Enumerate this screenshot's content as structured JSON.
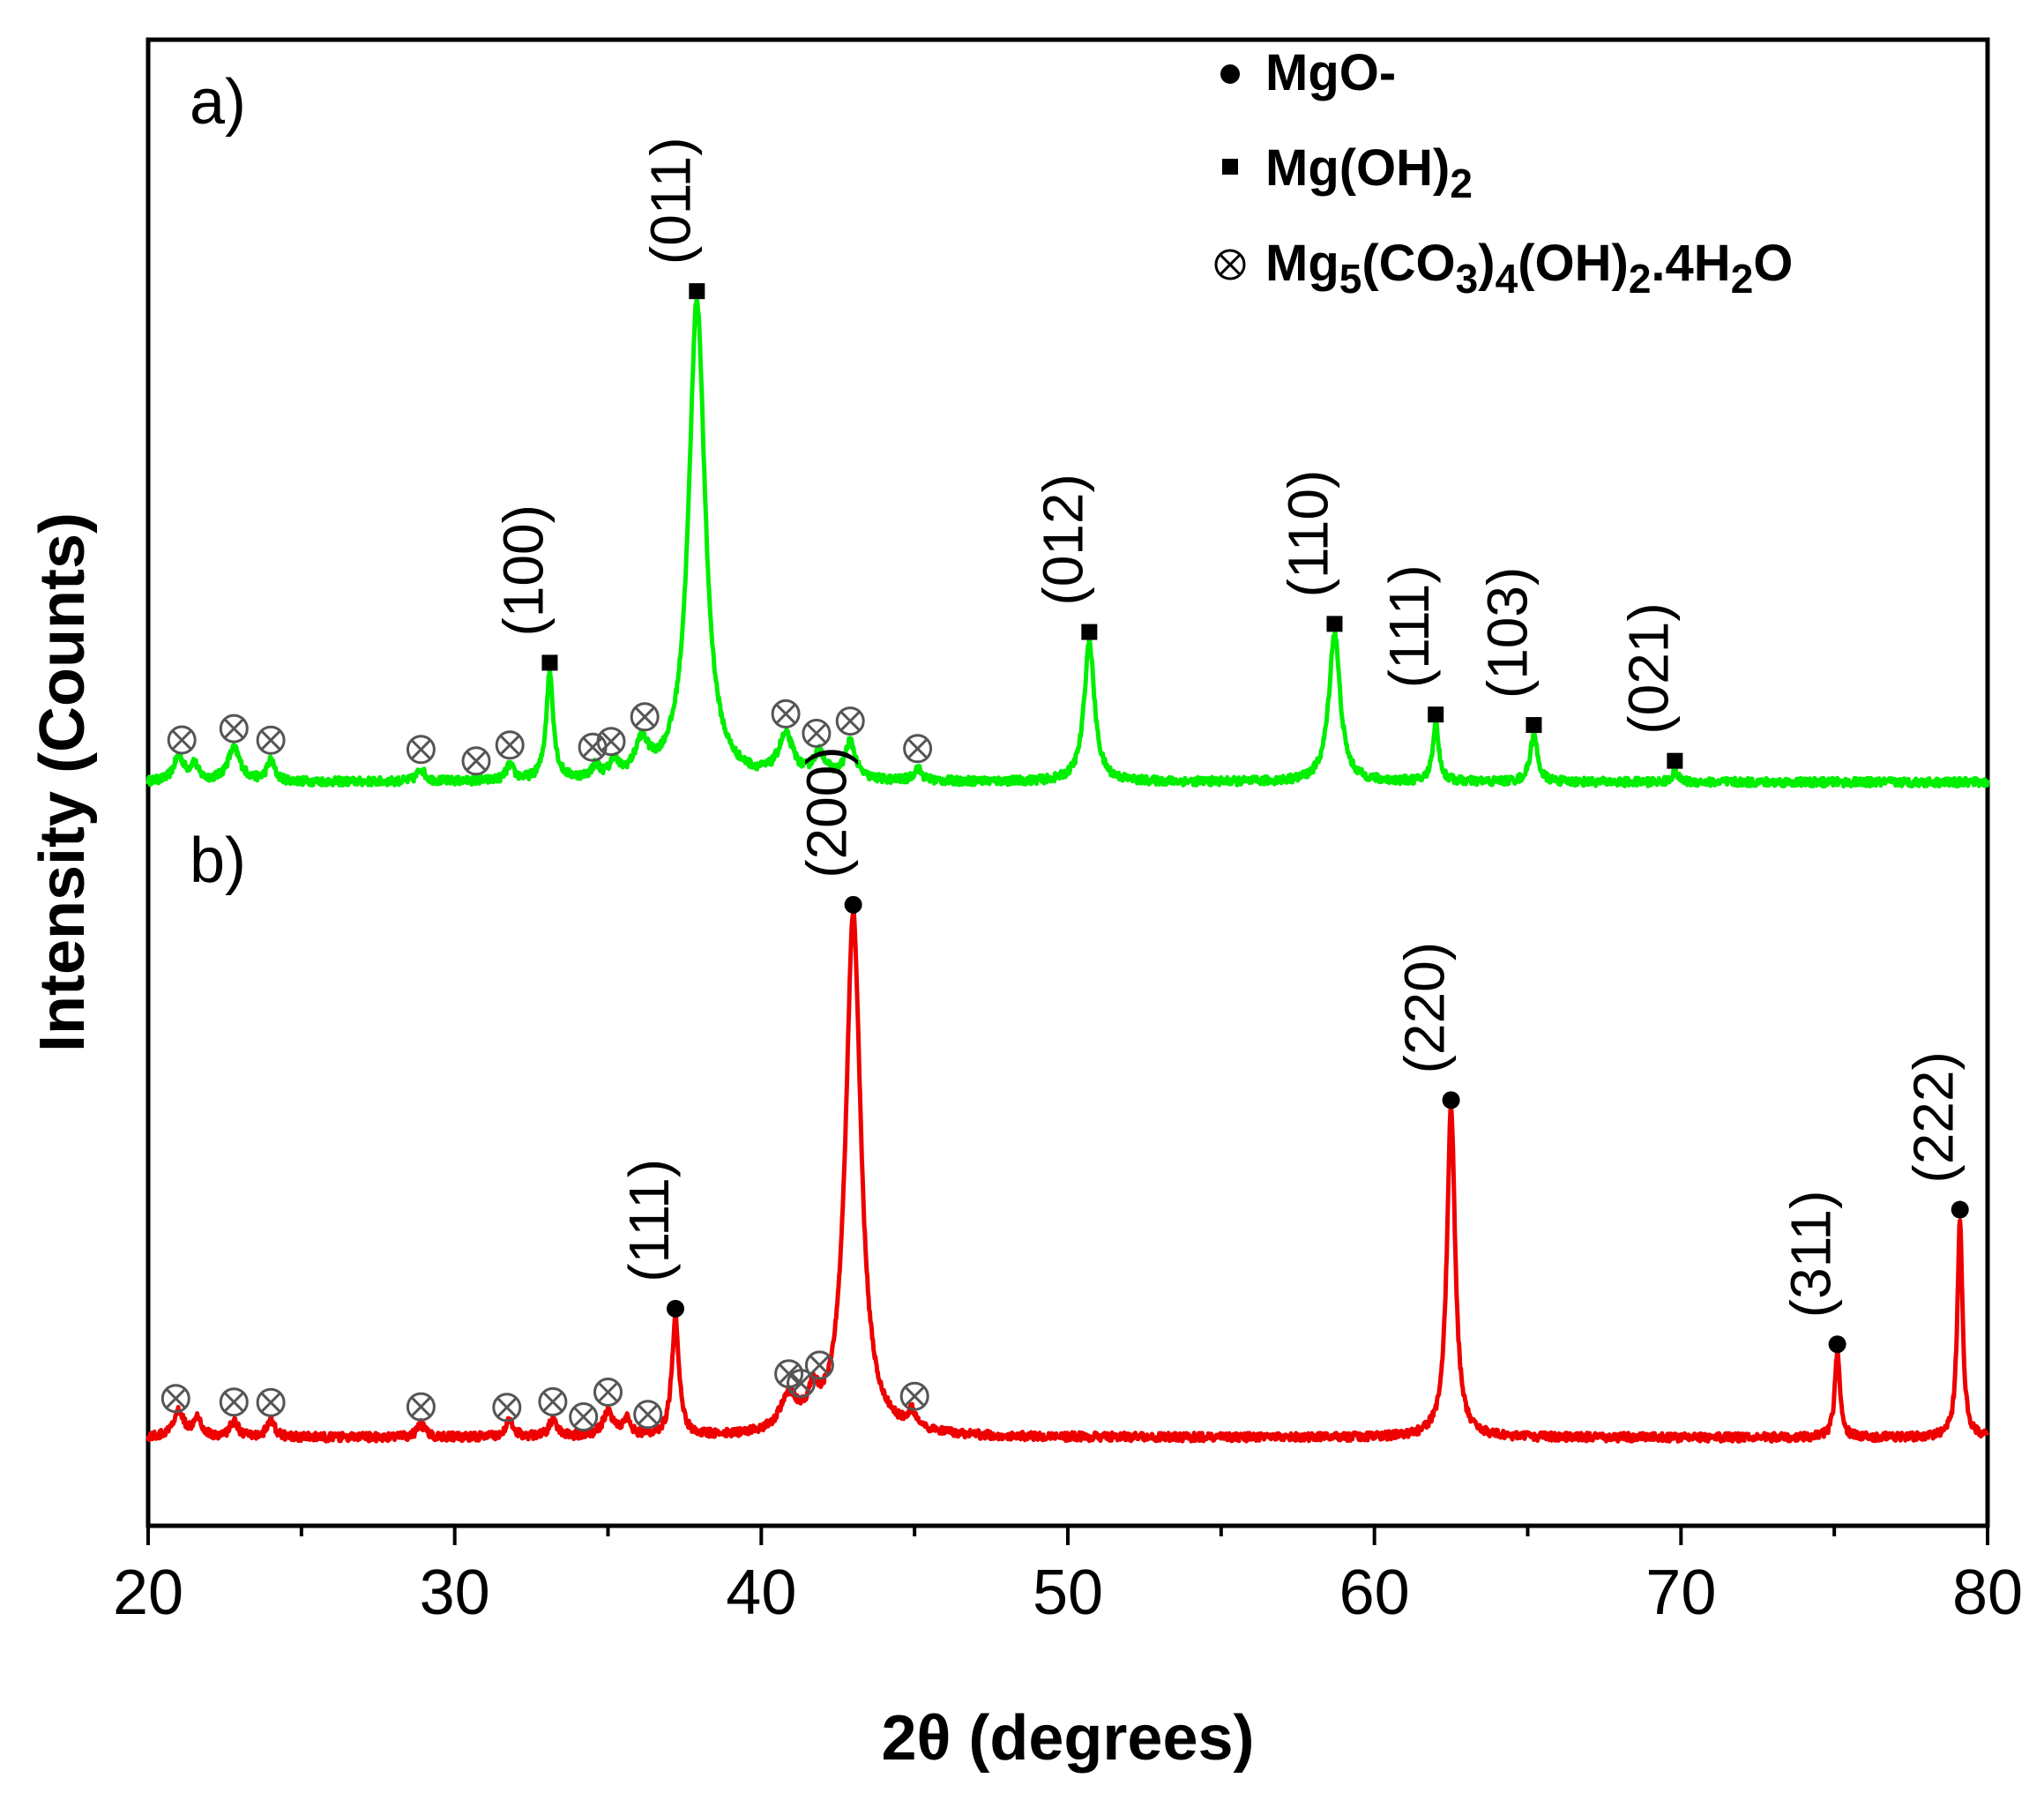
{
  "chart_data": {
    "type": "line",
    "xlabel": "2θ (degrees)",
    "ylabel": "Intensity  (Counts)",
    "xlim": [
      20,
      80
    ],
    "x_ticks": [
      "20",
      "30",
      "40",
      "50",
      "60",
      "70",
      "80"
    ],
    "grid": false,
    "legend_position": "top-right",
    "legend": [
      {
        "symbol": "circle",
        "text": "MgO-"
      },
      {
        "symbol": "square",
        "text": "Mg(OH)2",
        "parts": [
          {
            "t": "Mg(OH)"
          },
          {
            "t": "2",
            "sub": true
          }
        ]
      },
      {
        "symbol": "crossed-circle",
        "text": "Mg5(CO3)4(OH)2.4H2O",
        "parts": [
          {
            "t": "Mg"
          },
          {
            "t": "5",
            "sub": true
          },
          {
            "t": "(CO"
          },
          {
            "t": "3",
            "sub": true
          },
          {
            "t": ")"
          },
          {
            "t": "4",
            "sub": true
          },
          {
            "t": "(OH)"
          },
          {
            "t": "2",
            "sub": true
          },
          {
            "t": ".4H"
          },
          {
            "t": "2",
            "sub": true
          },
          {
            "t": "O"
          }
        ]
      }
    ],
    "series": [
      {
        "panel": "a)",
        "color": "#00ee00",
        "peaks": [
          {
            "x": 33.1,
            "h": 0.13,
            "w": 0.14
          },
          {
            "x": 37.9,
            "h": 0.58,
            "w": 0.32
          },
          {
            "x": 50.7,
            "h": 0.17,
            "w": 0.2
          },
          {
            "x": 58.7,
            "h": 0.18,
            "w": 0.22
          },
          {
            "x": 62.0,
            "h": 0.07,
            "w": 0.12
          },
          {
            "x": 65.2,
            "h": 0.058,
            "w": 0.14
          },
          {
            "x": 69.8,
            "h": 0.015,
            "w": 0.1
          },
          {
            "x": 21.0,
            "h": 0.03,
            "w": 0.2
          },
          {
            "x": 21.5,
            "h": 0.02,
            "w": 0.15
          },
          {
            "x": 22.8,
            "h": 0.04,
            "w": 0.25
          },
          {
            "x": 24.0,
            "h": 0.025,
            "w": 0.15
          },
          {
            "x": 28.9,
            "h": 0.015,
            "w": 0.15
          },
          {
            "x": 31.8,
            "h": 0.018,
            "w": 0.15
          },
          {
            "x": 34.6,
            "h": 0.015,
            "w": 0.15
          },
          {
            "x": 35.2,
            "h": 0.02,
            "w": 0.15
          },
          {
            "x": 36.1,
            "h": 0.04,
            "w": 0.25
          },
          {
            "x": 40.8,
            "h": 0.05,
            "w": 0.3
          },
          {
            "x": 41.9,
            "h": 0.03,
            "w": 0.25
          },
          {
            "x": 42.9,
            "h": 0.045,
            "w": 0.2
          },
          {
            "x": 45.1,
            "h": 0.015,
            "w": 0.15
          }
        ],
        "peak_labels": [
          {
            "x": 33.1,
            "label": "(100)",
            "marker": "square"
          },
          {
            "x": 37.9,
            "label": "(011)",
            "marker": "square"
          },
          {
            "x": 50.7,
            "label": "(012)",
            "marker": "square"
          },
          {
            "x": 58.7,
            "label": "(110)",
            "marker": "square"
          },
          {
            "x": 62.0,
            "label": "(111)",
            "marker": "square"
          },
          {
            "x": 65.2,
            "label": "(103)",
            "marker": "square"
          },
          {
            "x": 69.8,
            "label": "(021)",
            "marker": "square"
          }
        ],
        "impurity_x": [
          21.1,
          22.8,
          24.0,
          28.9,
          30.7,
          31.8,
          34.5,
          35.1,
          36.2,
          40.8,
          41.8,
          42.9,
          45.1
        ]
      },
      {
        "panel": "b)",
        "color": "#ee0000",
        "peaks": [
          {
            "x": 37.2,
            "h": 0.14,
            "w": 0.14
          },
          {
            "x": 43.0,
            "h": 0.62,
            "w": 0.3
          },
          {
            "x": 62.5,
            "h": 0.39,
            "w": 0.16
          },
          {
            "x": 75.1,
            "h": 0.1,
            "w": 0.1
          },
          {
            "x": 79.1,
            "h": 0.26,
            "w": 0.1
          },
          {
            "x": 21.0,
            "h": 0.03,
            "w": 0.2
          },
          {
            "x": 21.6,
            "h": 0.025,
            "w": 0.15
          },
          {
            "x": 22.8,
            "h": 0.02,
            "w": 0.15
          },
          {
            "x": 24.0,
            "h": 0.02,
            "w": 0.15
          },
          {
            "x": 28.9,
            "h": 0.015,
            "w": 0.15
          },
          {
            "x": 31.8,
            "h": 0.02,
            "w": 0.15
          },
          {
            "x": 33.2,
            "h": 0.02,
            "w": 0.15
          },
          {
            "x": 35.0,
            "h": 0.03,
            "w": 0.2
          },
          {
            "x": 35.6,
            "h": 0.02,
            "w": 0.15
          },
          {
            "x": 40.9,
            "h": 0.04,
            "w": 0.35
          },
          {
            "x": 41.7,
            "h": 0.035,
            "w": 0.2
          },
          {
            "x": 44.9,
            "h": 0.02,
            "w": 0.15
          }
        ],
        "peak_labels": [
          {
            "x": 37.2,
            "label": "(111)",
            "marker": "circle"
          },
          {
            "x": 43.0,
            "label": "(200)",
            "marker": "circle"
          },
          {
            "x": 62.5,
            "label": "(220)",
            "marker": "circle"
          },
          {
            "x": 75.1,
            "label": "(311)",
            "marker": "circle"
          },
          {
            "x": 79.1,
            "label": "(222)",
            "marker": "circle"
          }
        ],
        "impurity_x": [
          20.9,
          22.8,
          24.0,
          28.9,
          31.7,
          33.2,
          34.2,
          35.0,
          36.3,
          40.9,
          41.3,
          41.9,
          45.0
        ]
      }
    ]
  }
}
